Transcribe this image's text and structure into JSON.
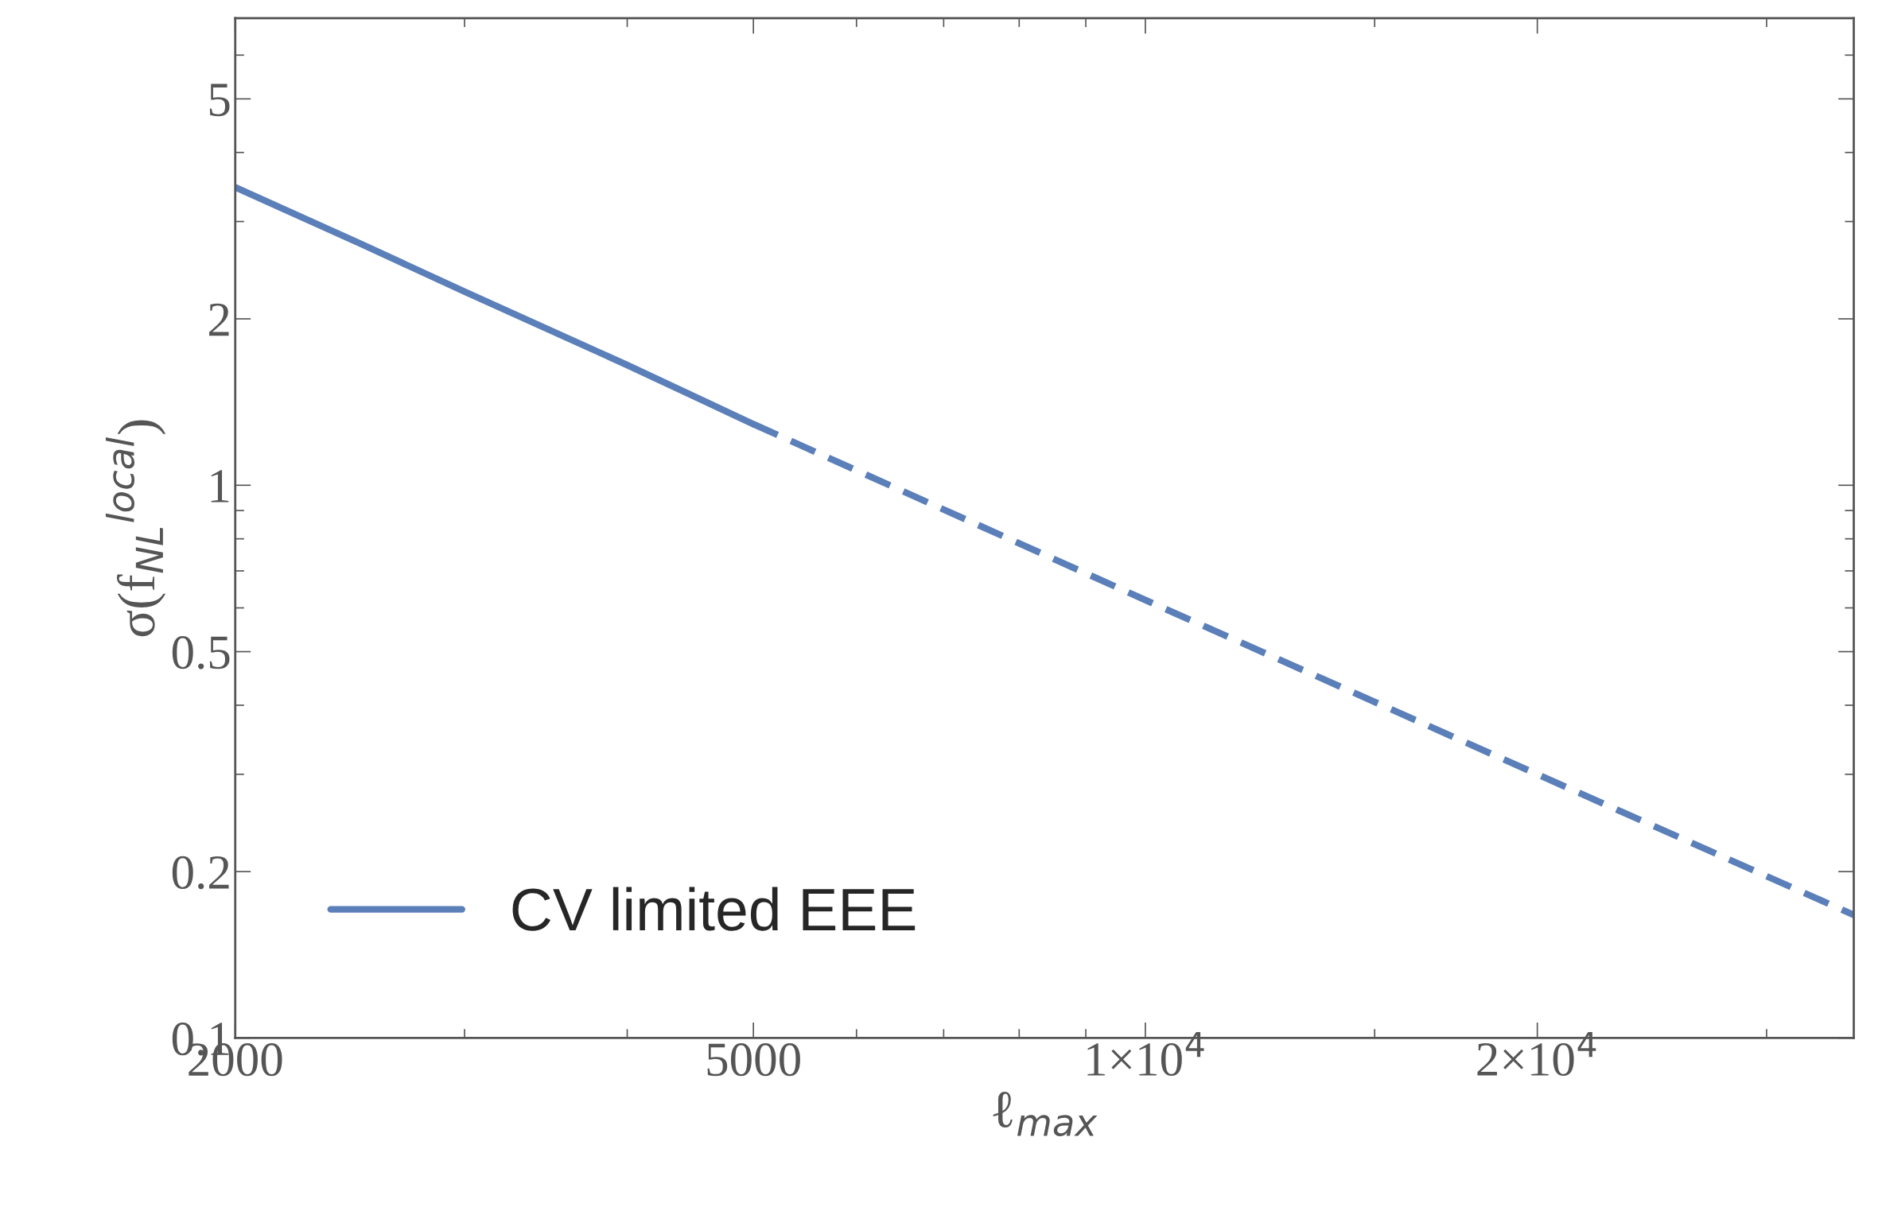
{
  "chart_data": {
    "type": "line",
    "xlabel": "ℓ$_{max}$",
    "ylabel": "σ(f$_{NL}$$^{local}$)",
    "log": "xy",
    "grid": false,
    "legend": "bottom left",
    "xlim": [
      2000,
      35000
    ],
    "ylim": [
      0.1,
      7
    ],
    "xticks": [
      2000,
      {
        "value": 3000,
        "label": null
      },
      {
        "value": 4000,
        "label": null
      },
      5000,
      {
        "value": 6000,
        "label": null
      },
      {
        "value": 7000,
        "label": null
      },
      {
        "value": 8000,
        "label": null
      },
      {
        "value": 9000,
        "label": null
      },
      {
        "value": 10000,
        "label": "1×10$^{4}$"
      },
      {
        "value": 15000,
        "label": null
      },
      {
        "value": 20000,
        "label": "2×10$^{4}$"
      },
      {
        "value": 30000,
        "label": null
      }
    ],
    "yticks": [
      0.1,
      0.2,
      {
        "value": 0.3,
        "label": null
      },
      {
        "value": 0.4,
        "label": null
      },
      0.5,
      {
        "value": 0.6,
        "label": null
      },
      {
        "value": 0.7,
        "label": null
      },
      {
        "value": 0.8,
        "label": null
      },
      {
        "value": 0.9,
        "label": null
      },
      1,
      2,
      {
        "value": 3,
        "label": null
      },
      {
        "value": 4,
        "label": null
      },
      5,
      {
        "value": 6,
        "label": null
      },
      {
        "value": 7,
        "label": null
      }
    ],
    "series": [
      {
        "name": "CV limited EEE",
        "color": "#5b7fb9",
        "line_style": "solid",
        "x": [
          2000,
          2500,
          3000,
          4000,
          5000
        ],
        "values": [
          3.46,
          2.73,
          2.24,
          1.65,
          1.29
        ]
      },
      {
        "color": "#5b7fb9",
        "line_style": "dashed",
        "x": [
          5000,
          10000,
          20000,
          35000
        ],
        "values": [
          1.29,
          0.62,
          0.3,
          0.167
        ]
      }
    ]
  }
}
